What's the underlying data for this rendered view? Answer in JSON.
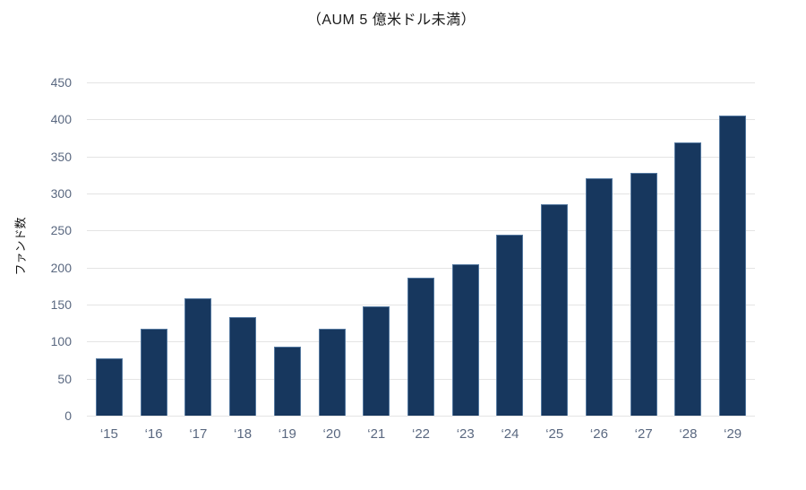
{
  "title": "（AUM 5 億米ドル未満）",
  "chart_data": {
    "type": "bar",
    "title": "（AUM 5 億米ドル未満）",
    "categories": [
      "‘15",
      "‘16",
      "‘17",
      "‘18",
      "‘19",
      "‘20",
      "‘21",
      "‘22",
      "‘23",
      "‘24",
      "‘25",
      "‘26",
      "‘27",
      "‘28",
      "‘29"
    ],
    "values": [
      77,
      117,
      158,
      133,
      93,
      117,
      148,
      186,
      205,
      244,
      285,
      321,
      328,
      369,
      405
    ],
    "xlabel": "",
    "ylabel": "ファンド数",
    "ylim": [
      0,
      450
    ],
    "yticks": [
      0,
      50,
      100,
      150,
      200,
      250,
      300,
      350,
      400,
      450
    ],
    "grid": "horizontal",
    "legend": "none",
    "colors": {
      "bar_fill": "#17375e",
      "bar_border": "#54789f",
      "gridline": "#e4e4e4",
      "tick_label": "#5a6880",
      "title_text": "#1a1a1a",
      "background": "#ffffff"
    }
  }
}
